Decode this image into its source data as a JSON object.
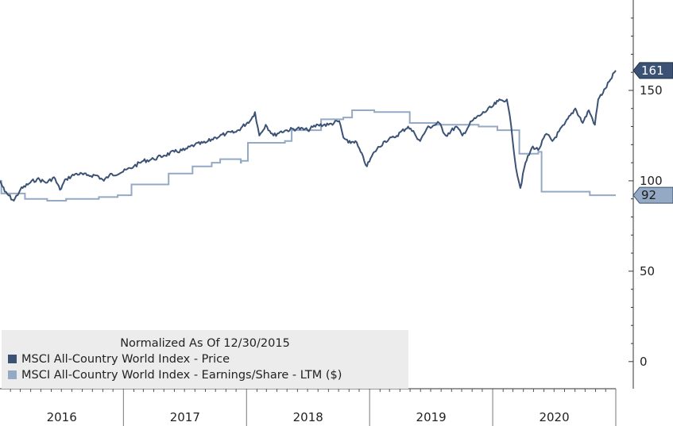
{
  "colors": {
    "price": "#3b5275",
    "eps": "#94a9c4"
  },
  "legend": {
    "title": "Normalized As Of 12/30/2015",
    "entries": [
      {
        "label": "MSCI All-Country World Index - Price",
        "color": "#3b5275"
      },
      {
        "label": "MSCI All-Country World Index - Earnings/Share - LTM ($)",
        "color": "#94a9c4"
      }
    ]
  },
  "chart_data": {
    "type": "line",
    "title": "",
    "xlabel": "",
    "ylabel": "",
    "x_categories": [
      "2016",
      "2017",
      "2018",
      "2019",
      "2020"
    ],
    "xlim": [
      "2016-01-01",
      "2020-12-31"
    ],
    "ylim": [
      -15,
      200
    ],
    "y_ticks": [
      0,
      50,
      100,
      150
    ],
    "legend_placement": "bottom-left",
    "grid": false,
    "last_value_labels": [
      {
        "series": "MSCI All-Country World Index - Price",
        "value": 161
      },
      {
        "series": "MSCI All-Country World Index - Earnings/Share - LTM ($)",
        "value": 92
      }
    ],
    "series": [
      {
        "name": "MSCI All-Country World Index - Price",
        "style": "line",
        "points": [
          [
            "2016-01-01",
            100
          ],
          [
            "2016-01-15",
            94
          ],
          [
            "2016-02-11",
            89
          ],
          [
            "2016-03-01",
            95
          ],
          [
            "2016-03-31",
            99
          ],
          [
            "2016-04-20",
            101
          ],
          [
            "2016-05-20",
            99
          ],
          [
            "2016-06-09",
            102
          ],
          [
            "2016-06-27",
            95
          ],
          [
            "2016-07-15",
            101
          ],
          [
            "2016-08-15",
            104
          ],
          [
            "2016-09-15",
            103
          ],
          [
            "2016-10-15",
            103
          ],
          [
            "2016-11-04",
            100
          ],
          [
            "2016-11-20",
            103
          ],
          [
            "2016-12-31",
            105
          ],
          [
            "2017-02-01",
            108
          ],
          [
            "2017-03-01",
            111
          ],
          [
            "2017-04-01",
            112
          ],
          [
            "2017-05-01",
            114
          ],
          [
            "2017-06-01",
            116
          ],
          [
            "2017-07-01",
            117
          ],
          [
            "2017-08-01",
            120
          ],
          [
            "2017-09-01",
            121
          ],
          [
            "2017-10-01",
            124
          ],
          [
            "2017-11-01",
            126
          ],
          [
            "2017-12-01",
            127
          ],
          [
            "2018-01-15",
            134
          ],
          [
            "2018-01-26",
            138
          ],
          [
            "2018-02-08",
            125
          ],
          [
            "2018-02-27",
            131
          ],
          [
            "2018-03-22",
            125
          ],
          [
            "2018-04-10",
            127
          ],
          [
            "2018-05-01",
            128
          ],
          [
            "2018-06-01",
            129
          ],
          [
            "2018-07-01",
            128
          ],
          [
            "2018-08-01",
            131
          ],
          [
            "2018-09-01",
            131
          ],
          [
            "2018-10-03",
            133
          ],
          [
            "2018-10-15",
            124
          ],
          [
            "2018-10-30",
            121
          ],
          [
            "2018-11-20",
            122
          ],
          [
            "2018-12-24",
            108
          ],
          [
            "2019-01-15",
            116
          ],
          [
            "2019-02-15",
            122
          ],
          [
            "2019-03-15",
            124
          ],
          [
            "2019-04-25",
            130
          ],
          [
            "2019-05-15",
            126
          ],
          [
            "2019-05-31",
            122
          ],
          [
            "2019-06-20",
            129
          ],
          [
            "2019-07-26",
            132
          ],
          [
            "2019-08-15",
            125
          ],
          [
            "2019-09-15",
            130
          ],
          [
            "2019-10-03",
            125
          ],
          [
            "2019-10-31",
            133
          ],
          [
            "2019-11-30",
            137
          ],
          [
            "2019-12-31",
            141
          ],
          [
            "2020-01-17",
            144
          ],
          [
            "2020-02-12",
            145
          ],
          [
            "2020-02-25",
            130
          ],
          [
            "2020-03-10",
            107
          ],
          [
            "2020-03-23",
            96
          ],
          [
            "2020-04-07",
            110
          ],
          [
            "2020-04-29",
            119
          ],
          [
            "2020-05-15",
            117
          ],
          [
            "2020-06-08",
            126
          ],
          [
            "2020-06-26",
            122
          ],
          [
            "2020-07-31",
            131
          ],
          [
            "2020-09-02",
            140
          ],
          [
            "2020-09-24",
            132
          ],
          [
            "2020-10-12",
            139
          ],
          [
            "2020-10-30",
            131
          ],
          [
            "2020-11-09",
            145
          ],
          [
            "2020-11-30",
            151
          ],
          [
            "2020-12-15",
            156
          ],
          [
            "2020-12-31",
            161
          ]
        ]
      },
      {
        "name": "MSCI All-Country World Index - Earnings/Share - LTM ($)",
        "style": "step",
        "points": [
          [
            "2016-01-01",
            100
          ],
          [
            "2016-01-05",
            93
          ],
          [
            "2016-03-15",
            90
          ],
          [
            "2016-05-20",
            89
          ],
          [
            "2016-07-15",
            90
          ],
          [
            "2016-10-20",
            91
          ],
          [
            "2016-12-15",
            92
          ],
          [
            "2017-01-25",
            98
          ],
          [
            "2017-05-15",
            104
          ],
          [
            "2017-07-25",
            108
          ],
          [
            "2017-09-20",
            110
          ],
          [
            "2017-10-15",
            112
          ],
          [
            "2017-12-15",
            110
          ],
          [
            "2017-12-16",
            111
          ],
          [
            "2018-01-05",
            121
          ],
          [
            "2018-04-25",
            122
          ],
          [
            "2018-05-15",
            128
          ],
          [
            "2018-07-20",
            128
          ],
          [
            "2018-08-10",
            134
          ],
          [
            "2018-10-15",
            135
          ],
          [
            "2018-11-10",
            139
          ],
          [
            "2019-01-15",
            138
          ],
          [
            "2019-04-30",
            132
          ],
          [
            "2019-07-15",
            131
          ],
          [
            "2019-10-15",
            131
          ],
          [
            "2019-11-20",
            130
          ],
          [
            "2020-01-15",
            128
          ],
          [
            "2020-03-15",
            128
          ],
          [
            "2020-03-20",
            115
          ],
          [
            "2020-05-15",
            116
          ],
          [
            "2020-05-25",
            94
          ],
          [
            "2020-08-01",
            94
          ],
          [
            "2020-10-15",
            92
          ],
          [
            "2020-12-31",
            92
          ]
        ]
      }
    ]
  }
}
